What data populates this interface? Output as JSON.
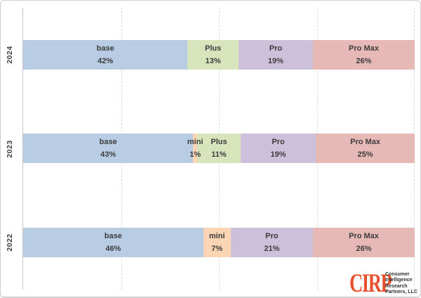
{
  "chart_data": {
    "type": "bar",
    "subtype": "stacked-horizontal-100pct",
    "title": "",
    "xlabel": "",
    "ylabel": "",
    "categories": [
      "2024",
      "2023",
      "2022"
    ],
    "legend_position": "none",
    "grid": "vertical-dashed",
    "gridlines_pct": [
      25,
      50,
      75,
      100
    ],
    "xlim": [
      0,
      100
    ],
    "series": [
      {
        "name": "base",
        "color": "#B8CCE4",
        "values": [
          42,
          43,
          46
        ]
      },
      {
        "name": "mini",
        "color": "#FCD5B4",
        "values": [
          0,
          1,
          7
        ]
      },
      {
        "name": "Plus",
        "color": "#D7E4BC",
        "values": [
          13,
          11,
          0
        ]
      },
      {
        "name": "Pro",
        "color": "#CCC0DA",
        "values": [
          19,
          19,
          21
        ]
      },
      {
        "name": "Pro Max",
        "color": "#E6B9B7",
        "values": [
          26,
          25,
          26
        ]
      }
    ],
    "value_suffix": "%"
  },
  "logo": {
    "abbr": "CIRP",
    "color": "#E8512D",
    "lines": [
      "Consumer",
      "Intelligence",
      "Research",
      "Partners, LLC"
    ]
  }
}
